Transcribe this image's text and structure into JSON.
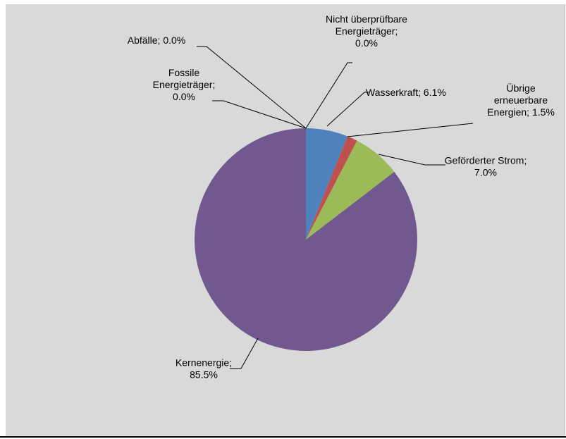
{
  "chart_data": {
    "type": "pie",
    "colors": {
      "background": "#d9d9d9",
      "leader": "#000000"
    },
    "slices": [
      {
        "name": "Wasserkraft",
        "value": 6.1,
        "color": "#4f81bd",
        "label_lines": [
          "Wasserkraft; 6.1%"
        ]
      },
      {
        "name": "Übrige erneuerbare Energien",
        "value": 1.5,
        "color": "#c0504d",
        "label_lines": [
          "Übrige",
          "erneuerbare",
          "Energien; 1.5%"
        ]
      },
      {
        "name": "Geförderter Strom",
        "value": 7.0,
        "color": "#9bbb59",
        "label_lines": [
          "Geförderter Strom;",
          "7.0%"
        ]
      },
      {
        "name": "Kernenergie",
        "value": 85.5,
        "color": "#71588f",
        "label_lines": [
          "Kernenergie;",
          "85.5%"
        ]
      },
      {
        "name": "Fossile Energieträger",
        "value": 0.0,
        "color": "#4bacc6",
        "label_lines": [
          "Fossile",
          "Energieträger;",
          "0.0%"
        ]
      },
      {
        "name": "Abfälle",
        "value": 0.0,
        "color": "#f79646",
        "label_lines": [
          "Abfälle; 0.0%"
        ]
      },
      {
        "name": "Nicht überprüfbare Energieträger",
        "value": 0.0,
        "color": "#2c4d75",
        "label_lines": [
          "Nicht überprüfbare",
          "Energieträger;",
          "0.0%"
        ]
      }
    ]
  }
}
